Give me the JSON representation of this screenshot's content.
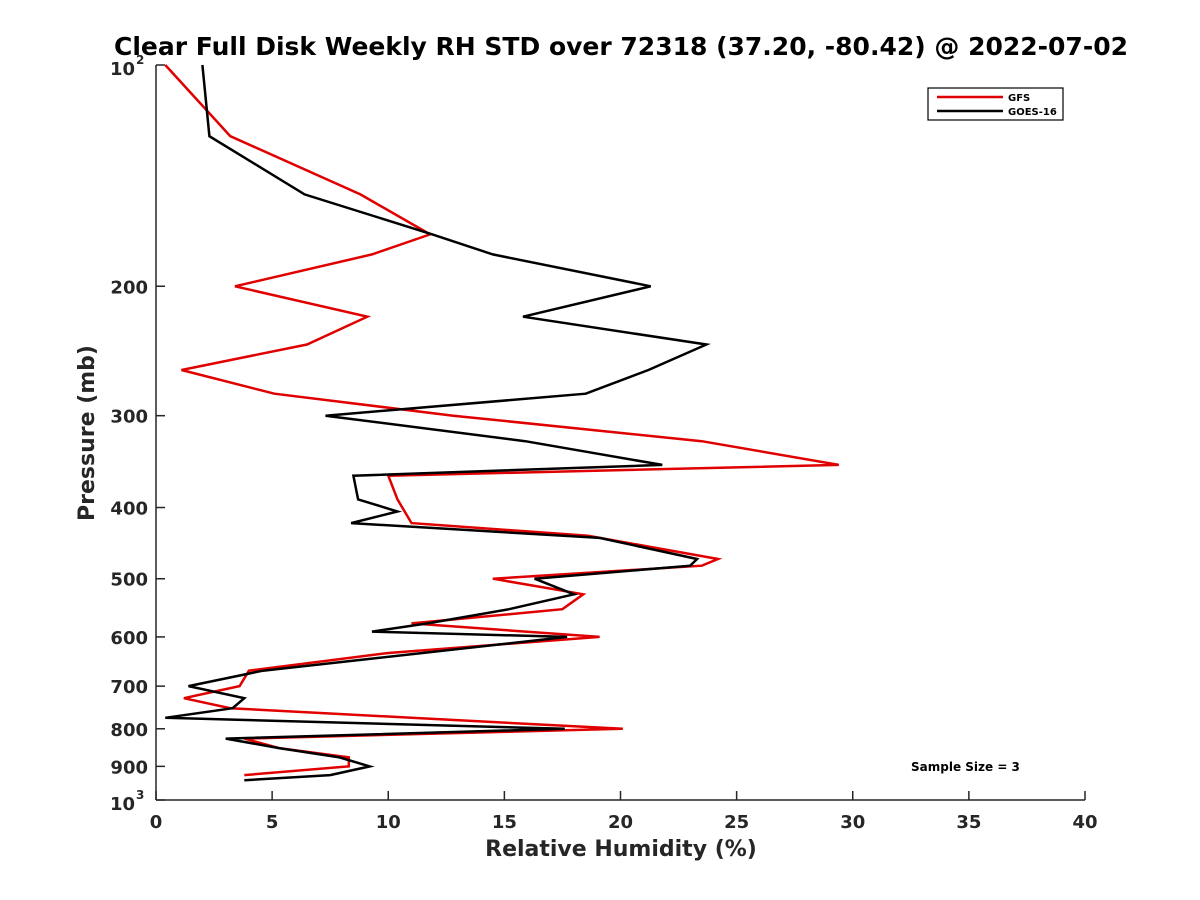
{
  "chart_data": {
    "type": "line",
    "title": "Clear Full Disk Weekly RH STD over 72318 (37.20, -80.42) @ 2022-07-02",
    "xlabel": "Relative Humidity (%)",
    "ylabel": "Pressure (mb)",
    "xlim": [
      0,
      40
    ],
    "ylim": [
      100,
      1000
    ],
    "y_scale": "log",
    "y_reversed": true,
    "grid": false,
    "legend_position": "top-right",
    "x_ticks": [
      "0",
      "5",
      "10",
      "15",
      "20",
      "25",
      "30",
      "35",
      "40"
    ],
    "y_ticks": [
      {
        "value": 100,
        "base": "10",
        "exp": "2"
      },
      {
        "value": 200,
        "label": "200"
      },
      {
        "value": 300,
        "label": "300"
      },
      {
        "value": 400,
        "label": "400"
      },
      {
        "value": 500,
        "label": "500"
      },
      {
        "value": 600,
        "label": "600"
      },
      {
        "value": 700,
        "label": "700"
      },
      {
        "value": 800,
        "label": "800"
      },
      {
        "value": 900,
        "label": "900"
      },
      {
        "value": 1000,
        "base": "10",
        "exp": "3"
      }
    ],
    "annotation": "Sample Size = 3",
    "series": [
      {
        "name": "GFS",
        "color": "#e00000",
        "points": [
          [
            0.4,
            100
          ],
          [
            3.2,
            125
          ],
          [
            8.8,
            150
          ],
          [
            11.8,
            170
          ],
          [
            9.3,
            181
          ],
          [
            3.4,
            200
          ],
          [
            9.1,
            220
          ],
          [
            6.5,
            240
          ],
          [
            1.1,
            260
          ],
          [
            5.1,
            280
          ],
          [
            12.8,
            300
          ],
          [
            23.5,
            325
          ],
          [
            29.4,
            350
          ],
          [
            10.0,
            362
          ],
          [
            10.4,
            390
          ],
          [
            11.0,
            420
          ],
          [
            18.6,
            437
          ],
          [
            24.2,
            470
          ],
          [
            23.5,
            480
          ],
          [
            14.5,
            500
          ],
          [
            18.4,
            525
          ],
          [
            17.5,
            550
          ],
          [
            11.0,
            575
          ],
          [
            19.1,
            600
          ],
          [
            10.0,
            631
          ],
          [
            4.0,
            667
          ],
          [
            3.6,
            700
          ],
          [
            1.2,
            727
          ],
          [
            3.2,
            750
          ],
          [
            11.0,
            773
          ],
          [
            20.1,
            800
          ],
          [
            3.8,
            825
          ],
          [
            5.3,
            850
          ],
          [
            8.3,
            875
          ],
          [
            8.3,
            900
          ],
          [
            3.8,
            925
          ]
        ]
      },
      {
        "name": "GOES-16",
        "color": "#000000",
        "points": [
          [
            2.0,
            100
          ],
          [
            2.3,
            125
          ],
          [
            6.4,
            150
          ],
          [
            11.9,
            170
          ],
          [
            14.5,
            181
          ],
          [
            21.3,
            200
          ],
          [
            15.8,
            220
          ],
          [
            23.7,
            240
          ],
          [
            21.2,
            260
          ],
          [
            18.5,
            280
          ],
          [
            7.3,
            300
          ],
          [
            15.9,
            325
          ],
          [
            21.8,
            350
          ],
          [
            8.5,
            362
          ],
          [
            8.7,
            390
          ],
          [
            10.4,
            405
          ],
          [
            8.4,
            420
          ],
          [
            19.1,
            440
          ],
          [
            23.3,
            470
          ],
          [
            23.0,
            480
          ],
          [
            16.3,
            500
          ],
          [
            18.0,
            525
          ],
          [
            15.2,
            550
          ],
          [
            11.7,
            575
          ],
          [
            9.3,
            590
          ],
          [
            17.7,
            600
          ],
          [
            4.6,
            667
          ],
          [
            1.4,
            700
          ],
          [
            3.8,
            727
          ],
          [
            3.3,
            750
          ],
          [
            0.4,
            773
          ],
          [
            17.6,
            800
          ],
          [
            3.0,
            825
          ],
          [
            5.3,
            850
          ],
          [
            7.9,
            875
          ],
          [
            9.2,
            900
          ],
          [
            7.5,
            925
          ],
          [
            3.8,
            940
          ]
        ]
      }
    ]
  }
}
